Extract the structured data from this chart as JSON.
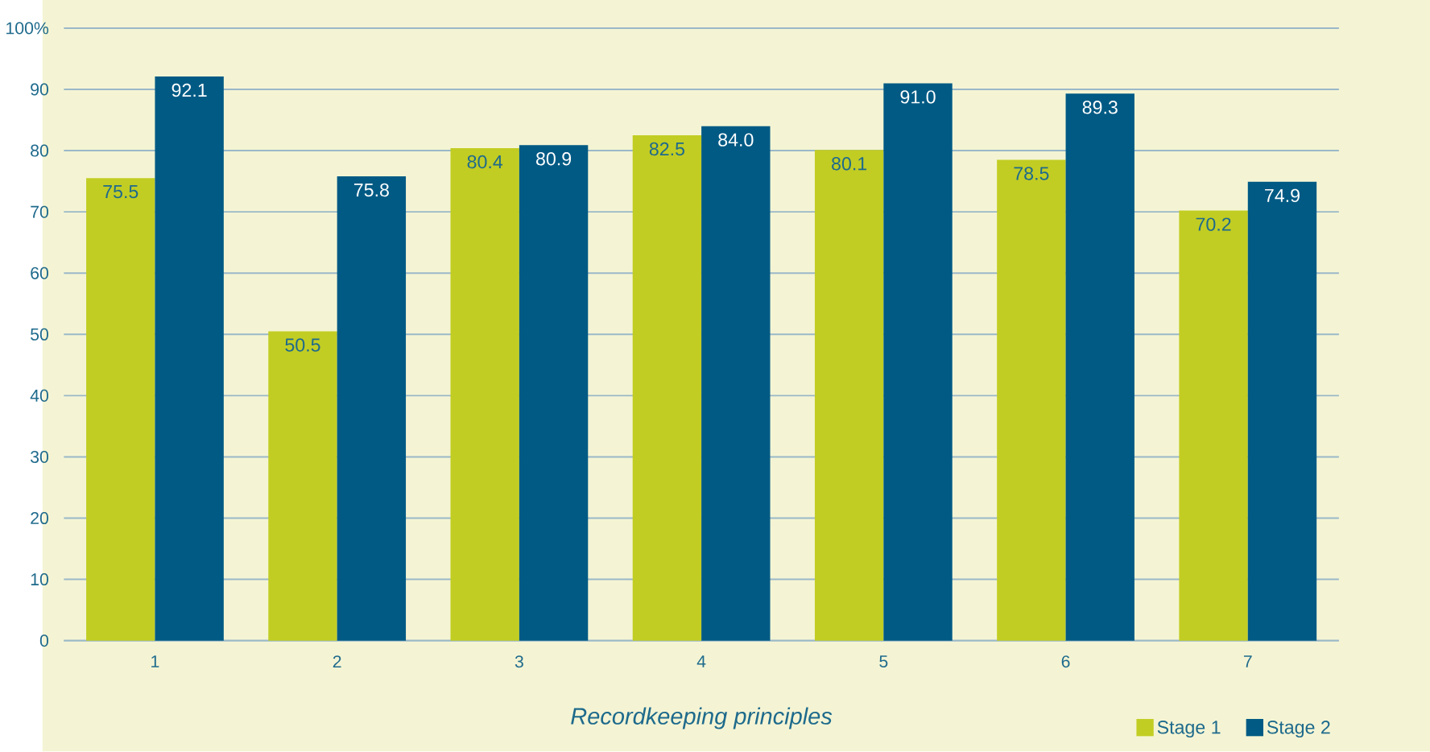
{
  "chart_data": {
    "type": "bar",
    "xlabel": "Recordkeeping principles",
    "categories": [
      "1",
      "2",
      "3",
      "4",
      "5",
      "6",
      "7"
    ],
    "series": [
      {
        "name": "Stage 1",
        "color": "#c2cd23",
        "values": [
          75.5,
          50.5,
          80.4,
          82.5,
          80.1,
          78.5,
          70.2
        ],
        "value_labels": [
          "75.5",
          "50.5",
          "80.4",
          "82.5",
          "80.1",
          "78.5",
          "70.2"
        ]
      },
      {
        "name": "Stage 2",
        "color": "#005a84",
        "values": [
          92.1,
          75.8,
          80.9,
          84,
          91,
          89.3,
          74.9
        ],
        "value_labels": [
          "92.1",
          "75.8",
          "80.9",
          "84.0",
          "91.0",
          "89.3",
          "74.9"
        ]
      }
    ],
    "ylim": [
      0,
      100
    ],
    "yticks": [
      0,
      10,
      20,
      30,
      40,
      50,
      60,
      70,
      80,
      90,
      {
        "value": 100,
        "label": "100%"
      }
    ],
    "grid": "y",
    "legend": "bottom right"
  }
}
